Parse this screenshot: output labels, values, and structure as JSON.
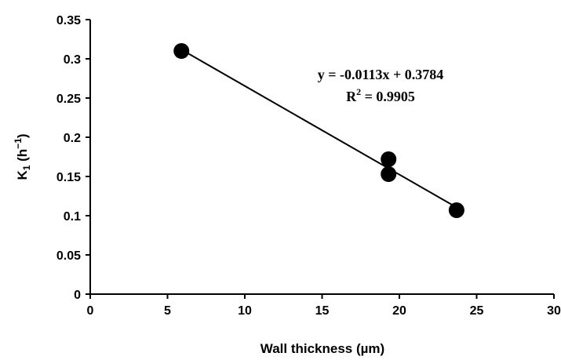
{
  "chart_data": {
    "type": "scatter",
    "xlabel": "Wall thickness (µm)",
    "ylabel": {
      "base": "K",
      "sub": "1",
      "unit_open": " (h",
      "unit_sup": "−1",
      "unit_close": ")"
    },
    "xlim": [
      0,
      30
    ],
    "ylim": [
      0,
      0.35
    ],
    "x_ticks": [
      "0",
      "5",
      "10",
      "15",
      "20",
      "25",
      "30"
    ],
    "y_ticks": [
      "0",
      "0.05",
      "0.1",
      "0.15",
      "0.2",
      "0.25",
      "0.3",
      "0.35"
    ],
    "grid": false,
    "points": [
      {
        "x": 5.9,
        "y": 0.31
      },
      {
        "x": 19.3,
        "y": 0.172
      },
      {
        "x": 19.3,
        "y": 0.153
      },
      {
        "x": 23.7,
        "y": 0.107
      }
    ],
    "trendline": {
      "slope": -0.0113,
      "intercept": 0.3784,
      "x_range": [
        5.9,
        23.7
      ],
      "equation": "y = -0.0113x + 0.3784",
      "r2_prefix": "R",
      "r2_sup": "2",
      "r2_value": " = 0.9905"
    },
    "colors": {
      "marker": "#000000",
      "axis": "#000000",
      "line": "#000000"
    }
  }
}
